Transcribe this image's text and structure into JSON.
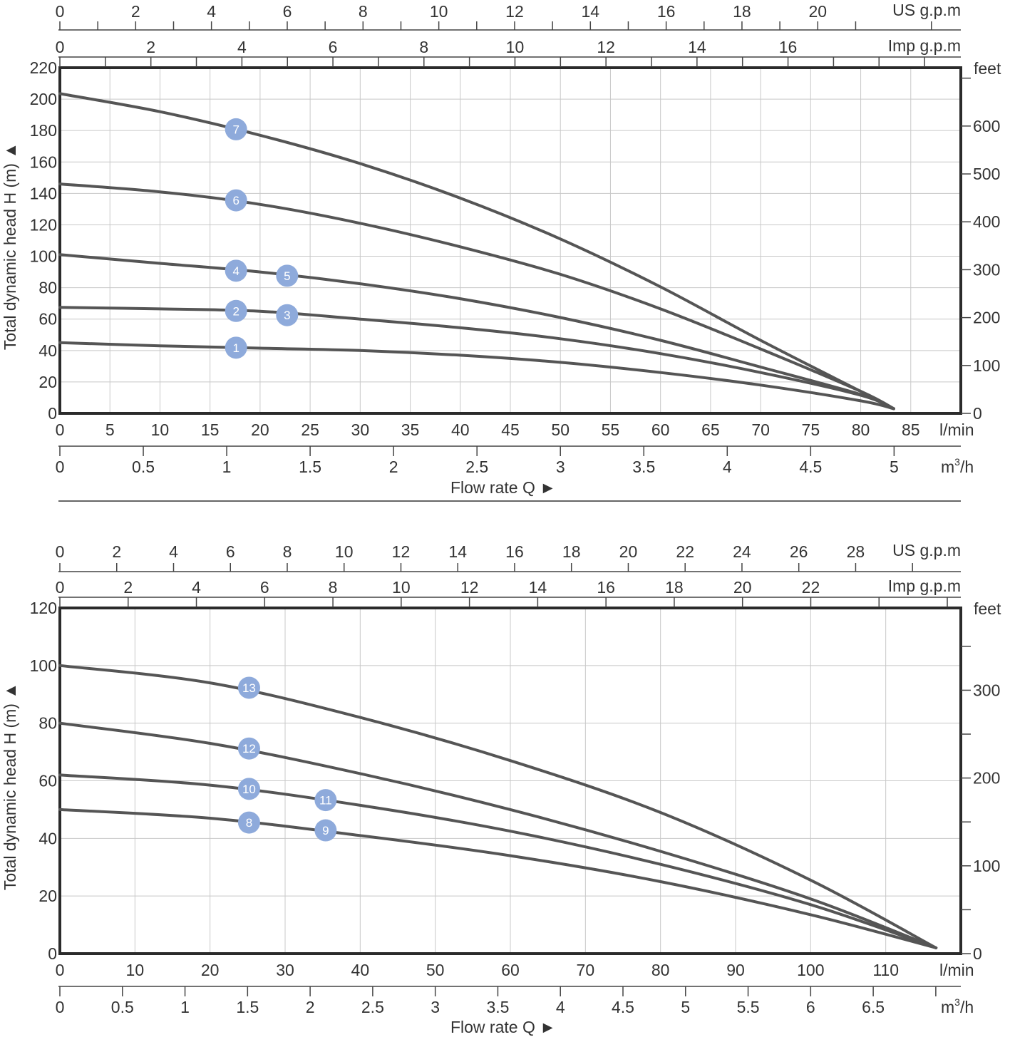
{
  "colors": {
    "curve": "#555555",
    "marker": "#8eaadb",
    "text": "#333333",
    "grid": "#c8c8c8",
    "frame": "#2b2b2b"
  },
  "chart_data": [
    {
      "type": "line",
      "id": "top",
      "ylabel": "Total dynamic head H (m) ▲",
      "xlabel": "Flow rate Q ►",
      "xlim": [
        0,
        90
      ],
      "ylim": [
        0,
        220
      ],
      "x_ticks": [
        0,
        5,
        10,
        15,
        20,
        25,
        30,
        35,
        40,
        45,
        50,
        55,
        60,
        65,
        70,
        75,
        80,
        85
      ],
      "x_unit": "l/min",
      "y_ticks": [
        0,
        20,
        40,
        60,
        80,
        100,
        120,
        140,
        160,
        180,
        200,
        220
      ],
      "feet_axis": {
        "unit": "feet",
        "range_feet": [
          0,
          721.8
        ],
        "ticks": [
          0,
          100,
          200,
          300,
          400,
          500,
          600
        ],
        "minor_ticks": [
          700
        ]
      },
      "m3h_axis": {
        "unit": "m3/h",
        "unit_base": "m",
        "unit_sup": "3",
        "unit_tail": "/h",
        "ticks": [
          0,
          0.5,
          1,
          1.5,
          2,
          2.5,
          3,
          3.5,
          4,
          4.5,
          5
        ],
        "minor_ticks": []
      },
      "us_gpm_axis": {
        "unit": "US g.p.m",
        "ticks": [
          0,
          2,
          4,
          6,
          8,
          10,
          12,
          14,
          16,
          18,
          20
        ],
        "minor_ticks": [
          1,
          3,
          5,
          7,
          9,
          11,
          13,
          15,
          17,
          19,
          21,
          23
        ]
      },
      "imp_gpm_axis": {
        "unit": "Imp g.p.m",
        "ticks": [
          0,
          2,
          4,
          6,
          8,
          10,
          12,
          14,
          16
        ],
        "minor_ticks": [
          1,
          3,
          5,
          7,
          9,
          11,
          13,
          15,
          17,
          18,
          19
        ]
      },
      "series": [
        {
          "name": "1",
          "x": [
            0,
            10,
            20,
            30,
            40,
            50,
            60,
            70,
            80,
            83.3
          ],
          "y": [
            45,
            43,
            41.5,
            40,
            37,
            32.5,
            26,
            18,
            8,
            3
          ]
        },
        {
          "name": "2-3",
          "x": [
            0,
            10,
            20,
            30,
            40,
            50,
            60,
            70,
            80,
            83.3
          ],
          "y": [
            67.5,
            66.5,
            65,
            60,
            54.5,
            47.5,
            38,
            26,
            11.5,
            3
          ]
        },
        {
          "name": "4-5",
          "x": [
            0,
            10,
            20,
            30,
            40,
            50,
            60,
            70,
            80,
            83.3
          ],
          "y": [
            101,
            95.5,
            90,
            82.5,
            73,
            61,
            46.5,
            29.5,
            12,
            3
          ]
        },
        {
          "name": "6",
          "x": [
            0,
            10,
            20,
            30,
            40,
            50,
            60,
            70,
            80,
            83.3
          ],
          "y": [
            146,
            141,
            133,
            121,
            106,
            88.5,
            66.5,
            41,
            14,
            3
          ]
        },
        {
          "name": "7",
          "x": [
            0,
            10,
            20,
            30,
            40,
            50,
            60,
            70,
            80,
            83.3
          ],
          "y": [
            203.5,
            192,
            177,
            159,
            137,
            111,
            80.5,
            46.5,
            14,
            3
          ]
        }
      ],
      "markers": [
        {
          "label": "1",
          "x": 17.6,
          "y": 41.8
        },
        {
          "label": "2",
          "x": 17.6,
          "y": 65.2
        },
        {
          "label": "3",
          "x": 22.7,
          "y": 62.5
        },
        {
          "label": "4",
          "x": 17.6,
          "y": 90.8
        },
        {
          "label": "5",
          "x": 22.7,
          "y": 87.6
        },
        {
          "label": "6",
          "x": 17.6,
          "y": 135.6
        },
        {
          "label": "7",
          "x": 17.6,
          "y": 180.8
        }
      ]
    },
    {
      "type": "line",
      "id": "bottom",
      "ylabel": "Total dynamic head H (m) ▲",
      "xlabel": "Flow rate Q ►",
      "xlim": [
        0,
        120
      ],
      "ylim": [
        0,
        120
      ],
      "x_ticks": [
        0,
        10,
        20,
        30,
        40,
        50,
        60,
        70,
        80,
        90,
        100,
        110
      ],
      "x_unit": "l/min",
      "y_ticks": [
        0,
        20,
        40,
        60,
        80,
        100,
        120
      ],
      "feet_axis": {
        "unit": "feet",
        "range_feet": [
          0,
          393.7
        ],
        "ticks": [
          0,
          100,
          200,
          300
        ],
        "minor_ticks": [
          50,
          150,
          250,
          350
        ]
      },
      "m3h_axis": {
        "unit": "m3/h",
        "unit_base": "m",
        "unit_sup": "3",
        "unit_tail": "/h",
        "ticks": [
          0,
          0.5,
          1,
          1.5,
          2,
          2.5,
          3,
          3.5,
          4,
          4.5,
          5,
          5.5,
          6,
          6.5
        ],
        "minor_ticks": [
          7
        ]
      },
      "us_gpm_axis": {
        "unit": "US g.p.m",
        "ticks": [
          0,
          2,
          4,
          6,
          8,
          10,
          12,
          14,
          16,
          18,
          20,
          22,
          24,
          26,
          28
        ],
        "minor_ticks": [
          30
        ]
      },
      "imp_gpm_axis": {
        "unit": "Imp g.p.m",
        "ticks": [
          0,
          2,
          4,
          6,
          8,
          10,
          12,
          14,
          16,
          18,
          20,
          22
        ],
        "minor_ticks": [
          24,
          26
        ]
      },
      "series": [
        {
          "name": "8-9",
          "x": [
            0,
            20,
            40,
            60,
            80,
            100,
            116.7
          ],
          "y": [
            50,
            47,
            41,
            34,
            25,
            13.5,
            2
          ]
        },
        {
          "name": "10-11",
          "x": [
            0,
            20,
            40,
            60,
            80,
            100,
            116.7
          ],
          "y": [
            62,
            58.5,
            51.5,
            42.5,
            31,
            17,
            2
          ]
        },
        {
          "name": "12",
          "x": [
            0,
            20,
            40,
            60,
            80,
            100,
            116.7
          ],
          "y": [
            80,
            73,
            62.5,
            50,
            35.5,
            19,
            2
          ]
        },
        {
          "name": "13",
          "x": [
            0,
            20,
            40,
            60,
            80,
            100,
            116.7
          ],
          "y": [
            100,
            94,
            82,
            67,
            49,
            25.5,
            2
          ]
        }
      ],
      "markers": [
        {
          "label": "8",
          "x": 25.2,
          "y": 45.5
        },
        {
          "label": "9",
          "x": 35.4,
          "y": 42.8
        },
        {
          "label": "10",
          "x": 25.2,
          "y": 57.2
        },
        {
          "label": "11",
          "x": 35.4,
          "y": 53.3
        },
        {
          "label": "12",
          "x": 25.2,
          "y": 71.2
        },
        {
          "label": "13",
          "x": 25.2,
          "y": 92.3
        }
      ]
    }
  ]
}
